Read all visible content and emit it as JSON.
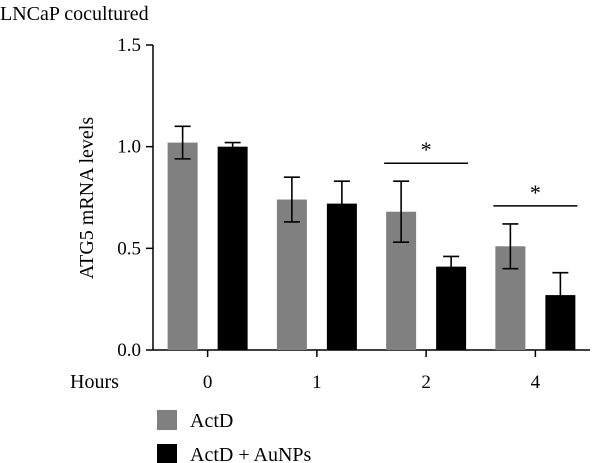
{
  "chart_data": {
    "type": "bar",
    "title": "LNCaP cocultured",
    "xlabel": "Hours",
    "ylabel": "ATG5 mRNA levels",
    "categories": [
      "0",
      "1",
      "2",
      "4"
    ],
    "ylim": [
      0,
      1.5
    ],
    "yticks": [
      "0.0",
      "0.5",
      "1.0",
      "1.5"
    ],
    "grid": false,
    "legend_position": "bottom-left",
    "series": [
      {
        "name": "ActD",
        "color": "#808080",
        "values": [
          1.02,
          0.74,
          0.68,
          0.51
        ],
        "errors": [
          0.08,
          0.11,
          0.15,
          0.11
        ]
      },
      {
        "name": "ActD + AuNPs",
        "color": "#000000",
        "values": [
          1.0,
          0.72,
          0.41,
          0.27
        ],
        "errors": [
          0.02,
          0.11,
          0.05,
          0.11
        ]
      }
    ],
    "annotations": [
      {
        "text": "*",
        "category": "2"
      },
      {
        "text": "*",
        "category": "4"
      }
    ]
  }
}
